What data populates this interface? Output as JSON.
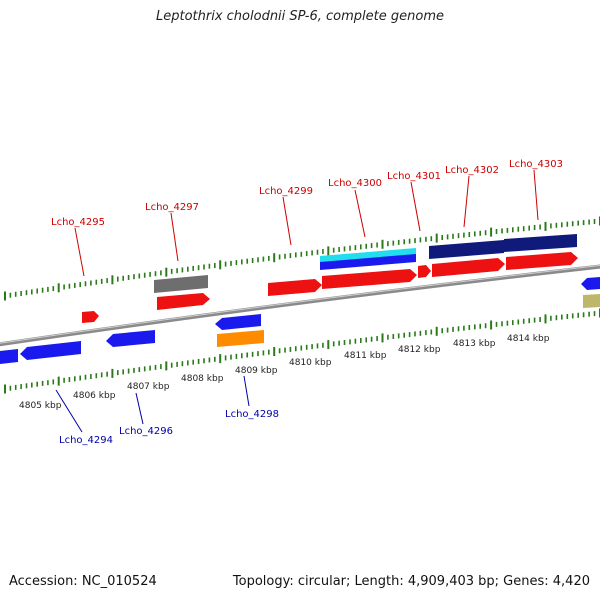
{
  "title": "Leptothrix cholodnii SP-6, complete genome",
  "footer": {
    "accession": "Accession: NC_010524",
    "summary": "Topology: circular; Length: 4,909,403 bp; Genes: 4,420"
  },
  "colors": {
    "forward_label": "#cc0000",
    "reverse_label": "#0000aa",
    "tick": "#2a7a1a",
    "backbone": "#8a8a8a",
    "ruler_text": "#222222",
    "feature_red": "#ee1111",
    "feature_blue": "#1a1aee",
    "feature_gray": "#6e6e6e",
    "feature_orange": "#ff8c00",
    "feature_cyan": "#22ddee",
    "feature_navy": "#0f1a7a",
    "feature_olive": "#bdb76b"
  },
  "ruler": {
    "unit": "kbp",
    "ticks": [
      "4805 kbp",
      "4806 kbp",
      "4807 kbp",
      "4808 kbp",
      "4809 kbp",
      "4810 kbp",
      "4811 kbp",
      "4812 kbp",
      "4813 kbp",
      "4814 kbp"
    ]
  },
  "genes": [
    {
      "name": "Lcho_4294",
      "strand": "reverse"
    },
    {
      "name": "Lcho_4295",
      "strand": "forward"
    },
    {
      "name": "Lcho_4296",
      "strand": "reverse"
    },
    {
      "name": "Lcho_4297",
      "strand": "forward"
    },
    {
      "name": "Lcho_4298",
      "strand": "reverse"
    },
    {
      "name": "Lcho_4299",
      "strand": "forward"
    },
    {
      "name": "Lcho_4300",
      "strand": "forward"
    },
    {
      "name": "Lcho_4301",
      "strand": "forward"
    },
    {
      "name": "Lcho_4302",
      "strand": "forward"
    },
    {
      "name": "Lcho_4303",
      "strand": "forward"
    }
  ]
}
